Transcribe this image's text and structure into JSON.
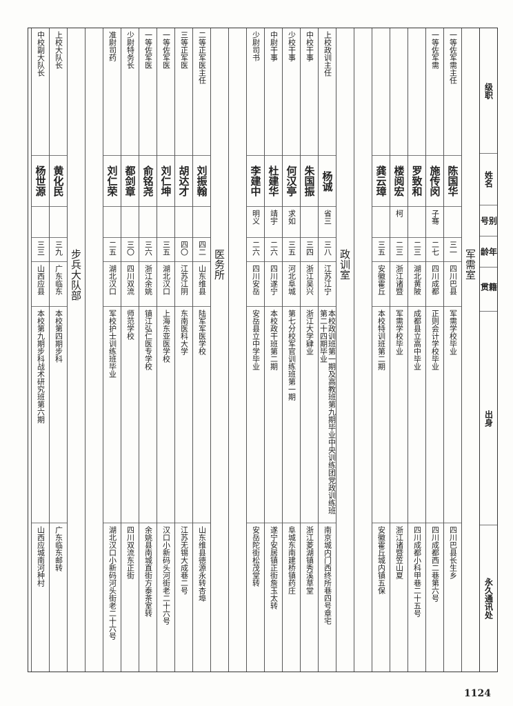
{
  "header": {
    "columns": [
      "级职",
      "姓名",
      "别号",
      "年龄",
      "籍贯",
      "出身",
      "永久通讯处"
    ]
  },
  "sections": [
    {
      "label": "军需室",
      "rows": [
        {
          "rank": "一等佐军需主任",
          "name": "陈国华",
          "age": "三一",
          "native": "四川巴县",
          "background": "军需学校毕业",
          "address": "四川巴县长生乡"
        },
        {
          "rank": "一等佐军需",
          "name": "施传闵",
          "alias": "子骞",
          "age": "二七",
          "native": "四川成都",
          "background": "正则会计学校毕业",
          "address": "四川成都西二巷第六号"
        },
        {
          "name": "罗致和",
          "age": "二三",
          "native": "湖北黄陂",
          "background": "成都县立高中毕业",
          "address": "四川成都小科甲巷二十五号"
        },
        {
          "name": "楼阅宏",
          "alias": "柯",
          "age": "二三",
          "native": "浙江诸暨",
          "background": "军需学校毕业",
          "address": "浙江诸暨笠山夏"
        },
        {
          "name": "龚云璋",
          "age": "三五",
          "native": "安徽霍丘",
          "background": "本校特训班第二期",
          "address": "安徽霍丘城内镇五保"
        }
      ]
    },
    {
      "label": "政训室",
      "rows": [
        {
          "rank": "上校政训主任",
          "name": "杨诚",
          "alias": "省三",
          "age": "三八",
          "native": "江苏江宁",
          "background": "本校政训班第一期及高教班第九期毕业中央训练团党政训练班第二十四期毕业",
          "address": "南京城内门西终所巷四号章宅"
        },
        {
          "rank": "中校干事",
          "name": "朱国振",
          "age": "三四",
          "native": "浙江吴兴",
          "background": "浙江大学肄业",
          "address": "浙江菱湖镇秀溪草堂"
        },
        {
          "rank": "少校干事",
          "name": "何汉亭",
          "alias": "求如",
          "age": "三五",
          "native": "河北阜城",
          "background": "第七分校军官训练班第一期",
          "address": "阜城东南建桥镇药庄"
        },
        {
          "rank": "中尉干事",
          "name": "杜建华",
          "alias": "靖宇",
          "age": "二六",
          "native": "四川遂宁",
          "background": "本校政干班第二期",
          "address": "遂宁安居镇正街詹玉太转"
        },
        {
          "rank": "少尉司书",
          "name": "李建中",
          "alias": "明义",
          "age": "二六",
          "native": "四川安岳",
          "background": "安岳县立中学毕业",
          "address": "安岳陀街松茂堂转"
        }
      ]
    },
    {
      "label": "医务所",
      "rows": [
        {
          "rank": "二等正军医主任",
          "name": "刘振翰",
          "age": "四二",
          "native": "山东维县",
          "background": "陆军军医学校",
          "address": "山东维县德源永转杏埠"
        },
        {
          "rank": "三等正军医",
          "name": "胡达才",
          "age": "四〇",
          "native": "江苏江阴",
          "background": "东南医科大学",
          "address": "江苏无锡大成巷二号"
        },
        {
          "rank": "一等佐军医",
          "name": "刘仁坤",
          "age": "三五",
          "native": "湖北汉口",
          "background": "上海东亚医学校",
          "address": "汉口小新码头河街老二十六号"
        },
        {
          "rank": "一等佐军医",
          "name": "俞铭尧",
          "age": "三六",
          "native": "浙江余姚",
          "background": "镇江弘仁医专学校",
          "address": "余姚县南城直街方泰茶室转"
        },
        {
          "rank": "少尉特务长",
          "name": "都剑章",
          "age": "三〇",
          "native": "四川双流",
          "background": "师范学校",
          "address": "四川双流东正街"
        },
        {
          "rank": "准尉司药",
          "name": "刘仁荣",
          "age": "二五",
          "native": "湖北汉口",
          "background": "军校护士训练班毕业",
          "address": "湖北汉口小新码河头街老二十六号"
        }
      ]
    },
    {
      "label": "步兵大队部",
      "rows": [
        {
          "rank": "上校大队长",
          "name": "黄化民",
          "age": "三九",
          "native": "广东临东",
          "background": "本校第四期步科",
          "address": "广东临东邮转"
        },
        {
          "rank": "中校副大队长",
          "name": "杨世源",
          "age": "三三",
          "native": "山西应县",
          "background": "本校第九期步科战术研究班第六期",
          "address": "山西应城南河种村"
        }
      ]
    }
  ],
  "page_number": "1124"
}
